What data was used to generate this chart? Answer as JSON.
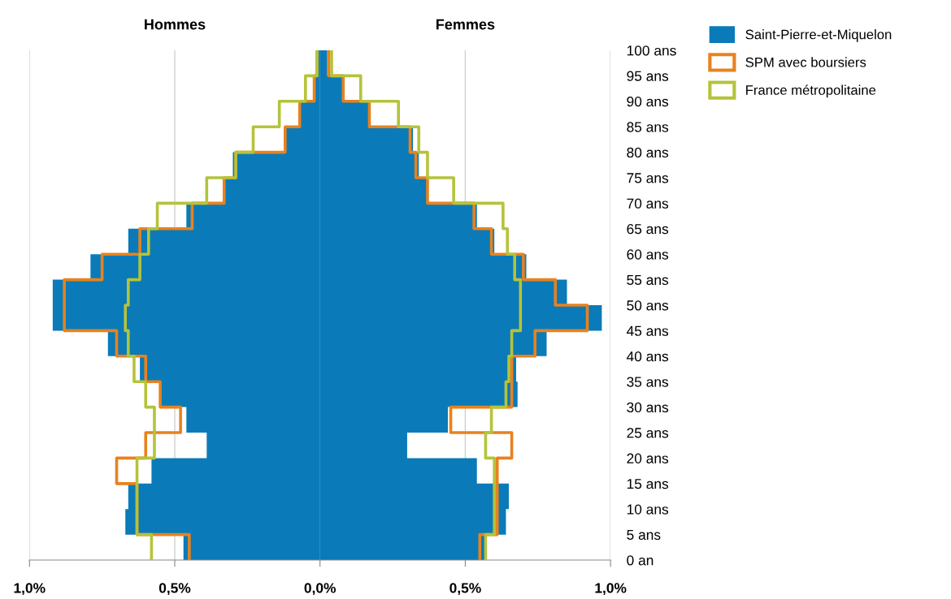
{
  "chart_data": {
    "type": "step",
    "orientation": "horizontal",
    "annotations": [
      "Hommes",
      "Femmes"
    ],
    "xlim": [
      -1.0,
      1.0
    ],
    "xticks": [
      {
        "value": -1.0,
        "label": "1,0%"
      },
      {
        "value": -0.5,
        "label": "0,5%"
      },
      {
        "value": 0.0,
        "label": "0,0%"
      },
      {
        "value": 0.5,
        "label": "0,5%"
      },
      {
        "value": 1.0,
        "label": "1,0%"
      }
    ],
    "ylim": [
      0,
      100
    ],
    "yticks": [
      {
        "value": 0,
        "label": "0 an"
      },
      {
        "value": 5,
        "label": "5 ans"
      },
      {
        "value": 10,
        "label": "10 ans"
      },
      {
        "value": 15,
        "label": "15 ans"
      },
      {
        "value": 20,
        "label": "20 ans"
      },
      {
        "value": 25,
        "label": "25 ans"
      },
      {
        "value": 30,
        "label": "30 ans"
      },
      {
        "value": 35,
        "label": "35 ans"
      },
      {
        "value": 40,
        "label": "40 ans"
      },
      {
        "value": 45,
        "label": "45 ans"
      },
      {
        "value": 50,
        "label": "50 ans"
      },
      {
        "value": 55,
        "label": "55 ans"
      },
      {
        "value": 60,
        "label": "60 ans"
      },
      {
        "value": 65,
        "label": "65 ans"
      },
      {
        "value": 70,
        "label": "70 ans"
      },
      {
        "value": 75,
        "label": "75 ans"
      },
      {
        "value": 80,
        "label": "80 ans"
      },
      {
        "value": 85,
        "label": "85 ans"
      },
      {
        "value": 90,
        "label": "90 ans"
      },
      {
        "value": 95,
        "label": "95 ans"
      },
      {
        "value": 100,
        "label": "100 ans"
      }
    ],
    "x": [
      0,
      5,
      10,
      15,
      20,
      25,
      30,
      35,
      40,
      45,
      50,
      55,
      60,
      65,
      70,
      75,
      80,
      85,
      90,
      95,
      100
    ],
    "grid": "x",
    "legend": "top right",
    "series": [
      {
        "type": "area",
        "color": "#0a7bb8",
        "values": [
          -0.47,
          -0.67,
          -0.66,
          -0.58,
          -0.39,
          -0.46,
          -0.55,
          -0.62,
          -0.73,
          -0.92,
          -0.92,
          -0.79,
          -0.66,
          -0.46,
          -0.33,
          -0.3,
          -0.12,
          -0.07,
          -0.02,
          -0.01,
          -0.01
        ]
      },
      {
        "type": "area",
        "name": "Saint-Pierre-et-Miquelon",
        "color": "#0a7bb8",
        "values": [
          0.57,
          0.64,
          0.65,
          0.54,
          0.3,
          0.44,
          0.68,
          0.675,
          0.78,
          0.97,
          0.85,
          0.71,
          0.6,
          0.54,
          0.37,
          0.34,
          0.32,
          0.17,
          0.08,
          0.025,
          0.025
        ]
      },
      {
        "type": "step",
        "color": "#e8821e",
        "values": [
          -0.45,
          -0.63,
          -0.63,
          -0.7,
          -0.6,
          -0.48,
          -0.55,
          -0.6,
          -0.7,
          -0.88,
          -0.88,
          -0.75,
          -0.62,
          -0.44,
          -0.33,
          -0.29,
          -0.12,
          -0.07,
          -0.02,
          -0.01,
          -0.01
        ]
      },
      {
        "type": "step",
        "name": "SPM avec boursiers",
        "color": "#e8821e",
        "values": [
          0.55,
          0.61,
          0.61,
          0.61,
          0.66,
          0.45,
          0.66,
          0.66,
          0.74,
          0.92,
          0.81,
          0.7,
          0.59,
          0.53,
          0.37,
          0.33,
          0.31,
          0.17,
          0.08,
          0.03,
          0.03
        ]
      },
      {
        "type": "step",
        "color": "#b5c33a",
        "values": [
          -0.58,
          -0.63,
          -0.63,
          -0.63,
          -0.57,
          -0.57,
          -0.6,
          -0.64,
          -0.66,
          -0.67,
          -0.66,
          -0.62,
          -0.59,
          -0.56,
          -0.39,
          -0.29,
          -0.23,
          -0.14,
          -0.05,
          -0.01,
          -0.01
        ]
      },
      {
        "type": "step",
        "name": "France métropolitaine",
        "color": "#b5c33a",
        "values": [
          0.57,
          0.6,
          0.6,
          0.6,
          0.57,
          0.59,
          0.64,
          0.65,
          0.66,
          0.69,
          0.69,
          0.67,
          0.645,
          0.63,
          0.46,
          0.37,
          0.34,
          0.27,
          0.14,
          0.04,
          0.04
        ]
      }
    ]
  }
}
